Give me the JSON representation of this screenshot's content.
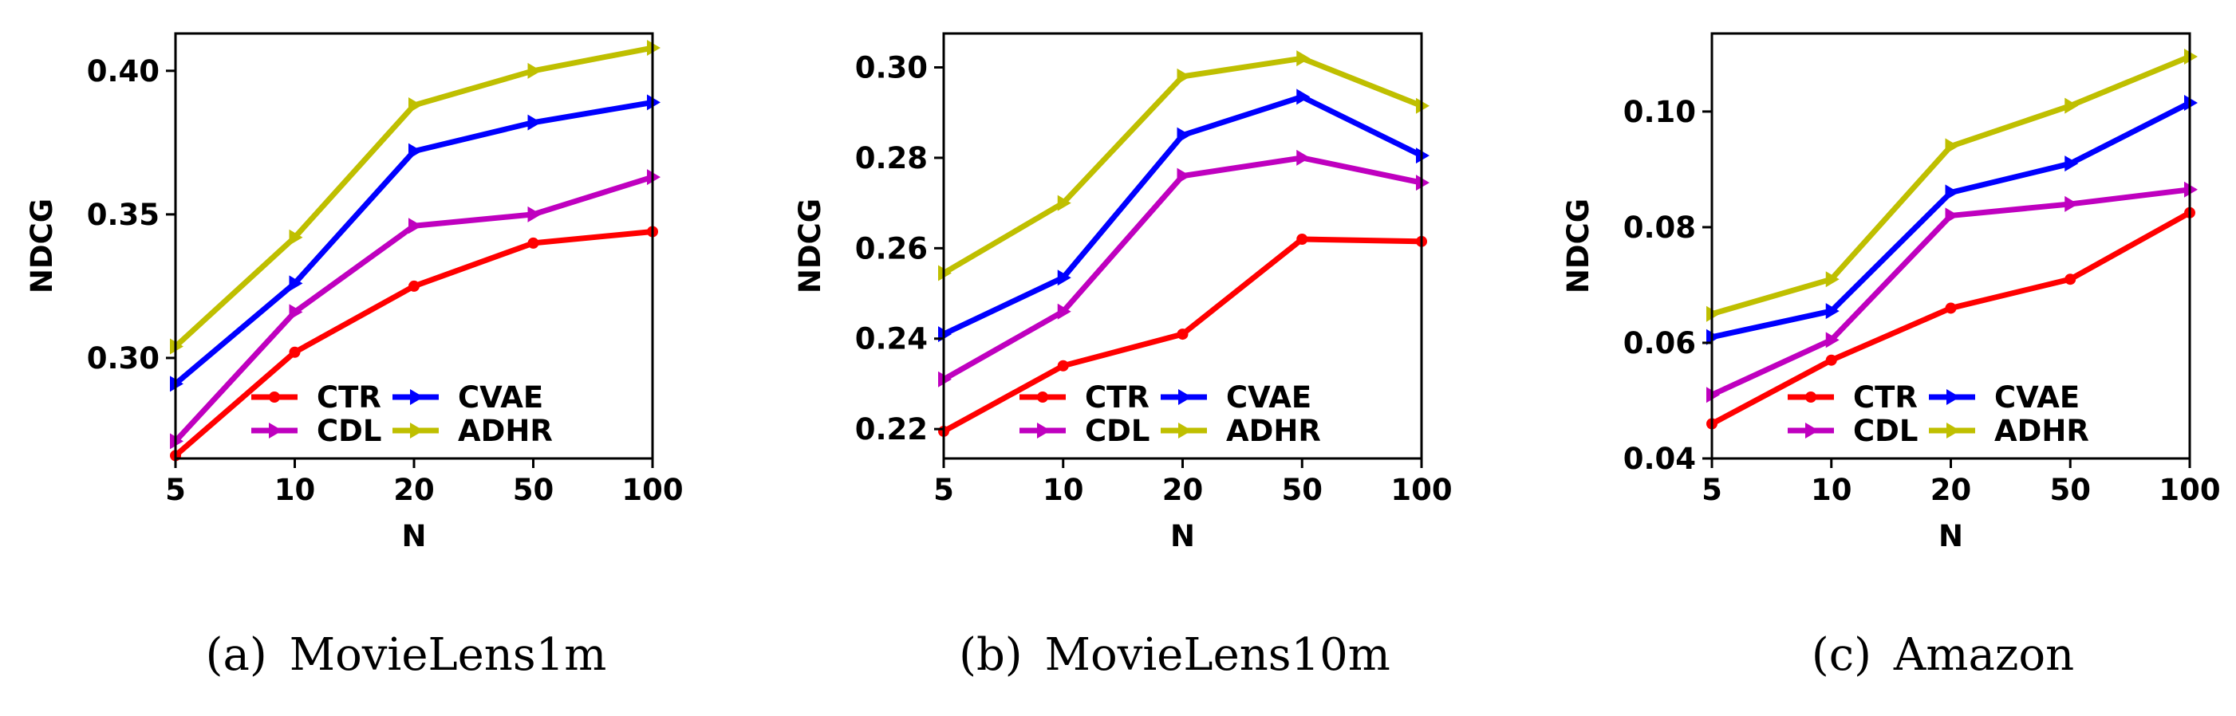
{
  "chart_data": [
    {
      "type": "line",
      "caption": "(a) MovieLens1m",
      "x": [
        "5",
        "10",
        "20",
        "50",
        "100"
      ],
      "xlabel": "N",
      "ylabel": "NDCG",
      "ylim": [
        0.265,
        0.413
      ],
      "yticks": [
        "0.30",
        "0.35",
        "0.40"
      ],
      "ytick_values": [
        0.3,
        0.35,
        0.4
      ],
      "legend_position": "lower-right",
      "series": [
        {
          "name": "CTR",
          "color": "#ff0000",
          "marker": "circle",
          "values": [
            0.266,
            0.302,
            0.325,
            0.34,
            0.344
          ]
        },
        {
          "name": "CDL",
          "color": "#bf00bf",
          "marker": "triangle-right",
          "values": [
            0.271,
            0.316,
            0.346,
            0.35,
            0.363
          ]
        },
        {
          "name": "CVAE",
          "color": "#0000ff",
          "marker": "triangle-right",
          "values": [
            0.291,
            0.326,
            0.372,
            0.382,
            0.389
          ]
        },
        {
          "name": "ADHR",
          "color": "#bfbf00",
          "marker": "triangle-right",
          "values": [
            0.304,
            0.342,
            0.388,
            0.4,
            0.408
          ]
        }
      ]
    },
    {
      "type": "line",
      "caption": "(b) MovieLens10m",
      "x": [
        "5",
        "10",
        "20",
        "50",
        "100"
      ],
      "xlabel": "N",
      "ylabel": "NDCG",
      "ylim": [
        0.2135,
        0.3075
      ],
      "yticks": [
        "0.22",
        "0.24",
        "0.26",
        "0.28",
        "0.30"
      ],
      "ytick_values": [
        0.22,
        0.24,
        0.26,
        0.28,
        0.3
      ],
      "legend_position": "lower-right",
      "series": [
        {
          "name": "CTR",
          "color": "#ff0000",
          "marker": "circle",
          "values": [
            0.2195,
            0.234,
            0.241,
            0.262,
            0.2615
          ]
        },
        {
          "name": "CDL",
          "color": "#bf00bf",
          "marker": "triangle-right",
          "values": [
            0.231,
            0.246,
            0.276,
            0.28,
            0.2745
          ]
        },
        {
          "name": "CVAE",
          "color": "#0000ff",
          "marker": "triangle-right",
          "values": [
            0.241,
            0.2535,
            0.285,
            0.2935,
            0.2805
          ]
        },
        {
          "name": "ADHR",
          "color": "#bfbf00",
          "marker": "triangle-right",
          "values": [
            0.2545,
            0.27,
            0.298,
            0.302,
            0.2915
          ]
        }
      ]
    },
    {
      "type": "line",
      "caption": "(c) Amazon",
      "x": [
        "5",
        "10",
        "20",
        "50",
        "100"
      ],
      "xlabel": "N",
      "ylabel": "NDCG",
      "ylim": [
        0.04,
        0.1135
      ],
      "yticks": [
        "0.04",
        "0.06",
        "0.08",
        "0.10"
      ],
      "ytick_values": [
        0.04,
        0.06,
        0.08,
        0.1
      ],
      "legend_position": "lower-right",
      "series": [
        {
          "name": "CTR",
          "color": "#ff0000",
          "marker": "circle",
          "values": [
            0.046,
            0.057,
            0.066,
            0.071,
            0.0825
          ]
        },
        {
          "name": "CDL",
          "color": "#bf00bf",
          "marker": "triangle-right",
          "values": [
            0.051,
            0.0605,
            0.082,
            0.084,
            0.0865
          ]
        },
        {
          "name": "CVAE",
          "color": "#0000ff",
          "marker": "triangle-right",
          "values": [
            0.061,
            0.0655,
            0.086,
            0.091,
            0.1015
          ]
        },
        {
          "name": "ADHR",
          "color": "#bfbf00",
          "marker": "triangle-right",
          "values": [
            0.065,
            0.071,
            0.094,
            0.101,
            0.1095
          ]
        }
      ]
    }
  ]
}
